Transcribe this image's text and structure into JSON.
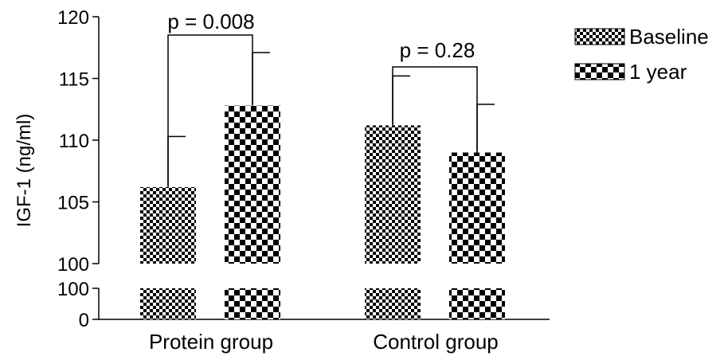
{
  "chart_data": {
    "type": "bar",
    "categories": [
      "Protein group",
      "Control group"
    ],
    "series": [
      {
        "name": "Baseline",
        "values": [
          106.2,
          111.2
        ],
        "errors": [
          4.1,
          4.0
        ]
      },
      {
        "name": "1 year",
        "values": [
          112.8,
          109.0
        ],
        "errors": [
          4.3,
          3.9
        ]
      }
    ],
    "ylabel": "IGF-1 (ng/ml)",
    "xlabel": "",
    "ylim_upper": [
      100,
      120
    ],
    "ylim_lower": [
      0,
      100
    ],
    "yticks_upper": [
      "100",
      "105",
      "110",
      "115",
      "120"
    ],
    "yticks_lower": [
      "0",
      "100"
    ],
    "axis_break": true,
    "legend_position": "top-right",
    "annotations": [
      {
        "text": "p = 0.008",
        "category": "Protein group"
      },
      {
        "text": "p = 0.28",
        "category": "Control group"
      }
    ],
    "colors": {
      "fill": "#ffffff",
      "pattern": "#000000"
    }
  }
}
